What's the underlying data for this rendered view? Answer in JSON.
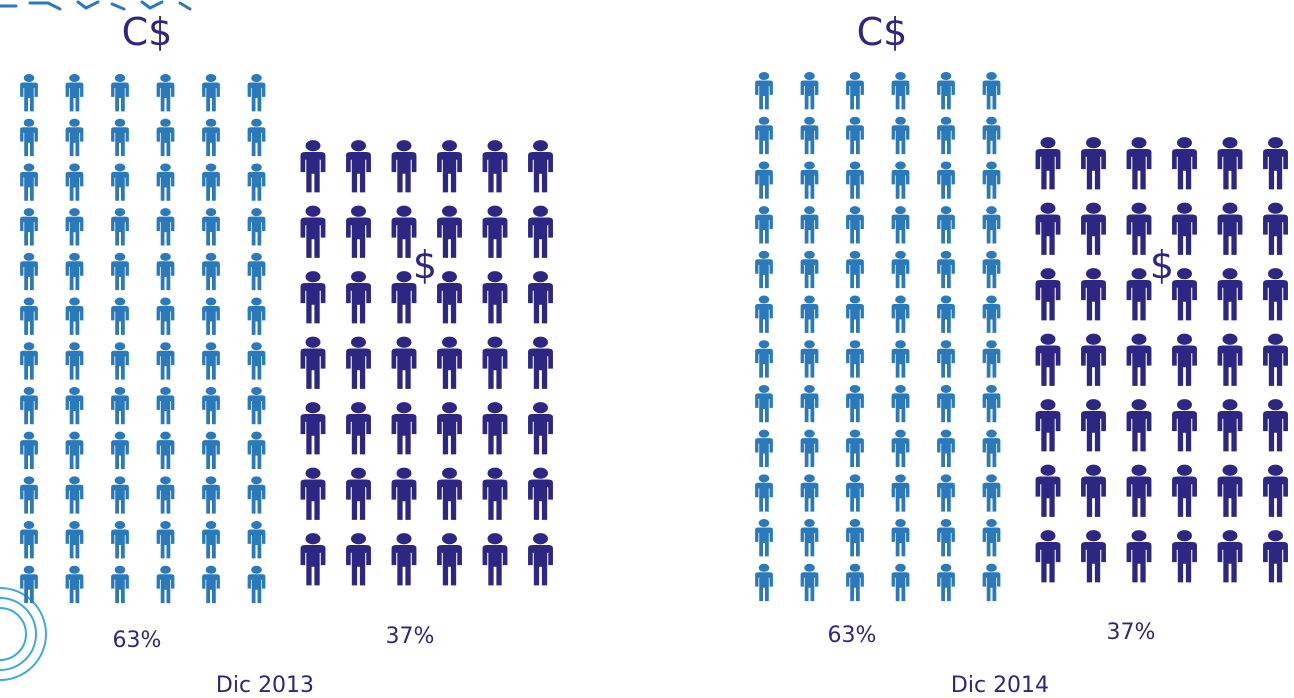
{
  "colors": {
    "cordobas": "#2a7abb",
    "dollars": "#2e2683",
    "text": "#2e2683"
  },
  "icon": "person-icon",
  "chart_data": {
    "type": "bar",
    "categories": [
      "Dic 2013",
      "Dic 2014"
    ],
    "series": [
      {
        "name": "C$",
        "values": [
          63,
          63
        ],
        "value_labels": [
          "63%",
          "63%"
        ]
      },
      {
        "name": "$",
        "values": [
          37,
          37
        ],
        "value_labels": [
          "37%",
          "37%"
        ]
      }
    ],
    "unit": "%"
  }
}
